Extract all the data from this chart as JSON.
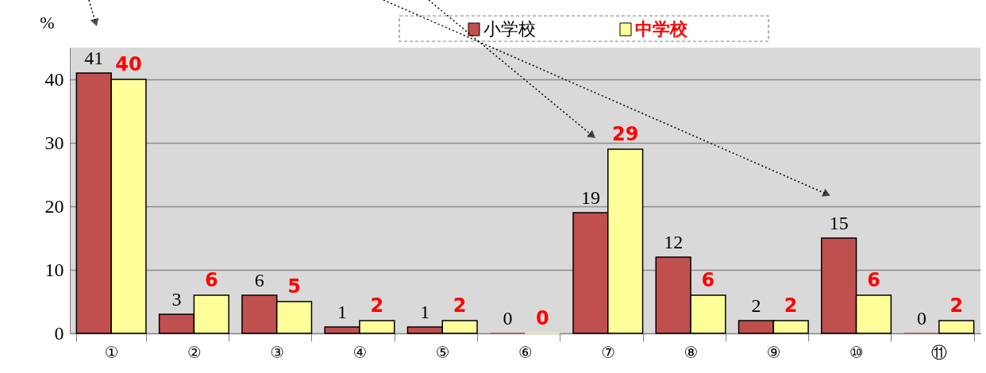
{
  "chart_data": {
    "type": "bar",
    "ylabel": "%",
    "categories": [
      "①",
      "②",
      "③",
      "④",
      "⑤",
      "⑥",
      "⑦",
      "⑧",
      "⑨",
      "⑩",
      "⑪"
    ],
    "series": [
      {
        "name": "小学校",
        "color": "#c0504d",
        "values": [
          41,
          3,
          6,
          1,
          1,
          0,
          19,
          12,
          2,
          15,
          0
        ]
      },
      {
        "name": "中学校",
        "color": "#ffff99",
        "values": [
          40,
          6,
          5,
          2,
          2,
          0,
          29,
          6,
          2,
          6,
          2
        ]
      }
    ],
    "ylim": [
      0,
      45
    ],
    "yticks": [
      0,
      10,
      20,
      30,
      40
    ],
    "grid": "y",
    "legend": "top",
    "data_labels": true
  }
}
